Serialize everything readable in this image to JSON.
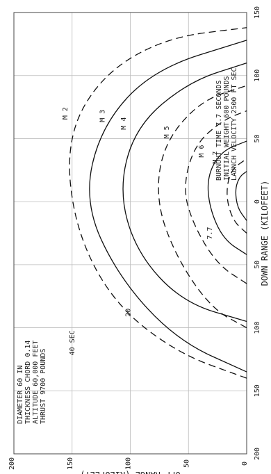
{
  "chart_data": {
    "type": "line",
    "title": "",
    "xlabel": "DOWN RANGE (KILOFEET)",
    "ylabel": "OFF RANGE (KILOFEET)",
    "xlim": [
      -200,
      150
    ],
    "ylim": [
      0,
      200
    ],
    "grid": true,
    "x_ticks": [
      "200",
      "150",
      "100",
      "50",
      "0",
      "50",
      "100",
      "150"
    ],
    "x_tick_values": [
      -200,
      -150,
      -100,
      -50,
      0,
      50,
      100,
      150
    ],
    "y_ticks": [
      "0",
      "50",
      "100",
      "150",
      "200"
    ],
    "y_tick_values": [
      0,
      50,
      100,
      150,
      200
    ],
    "notes_left": [
      "DIAMETER 60 IN",
      "THICKNESS CHORD 0.14",
      "ALTITUDE 60,000 FEET",
      "THRUST 9700 POUNDS"
    ],
    "notes_right": [
      "BURNOUT TIME 7.7 SECONDS",
      "INITIAL WEIGHT 600 POUNDS",
      "LAUNCH VELOCITY 2500 FT SEC"
    ],
    "mach_labels": [
      {
        "text": "M 2",
        "x": 70,
        "y": 154
      },
      {
        "text": "M 3",
        "x": 68,
        "y": 122
      },
      {
        "text": "M 4",
        "x": 62,
        "y": 104
      },
      {
        "text": "M 5",
        "x": 55,
        "y": 67
      },
      {
        "text": "M 6",
        "x": 40,
        "y": 37
      },
      {
        "text": "M 7",
        "x": 35,
        "y": 25
      }
    ],
    "time_labels": [
      {
        "text": "40 SEC",
        "x": -112,
        "y": 148
      },
      {
        "text": "20",
        "x": -88,
        "y": 100
      },
      {
        "text": "7.7",
        "x": -25,
        "y": 30
      }
    ],
    "series": [
      {
        "style": "dashed",
        "points": [
          [
            -140,
            0
          ],
          [
            -120,
            60
          ],
          [
            -80,
            115
          ],
          [
            -20,
            148
          ],
          [
            50,
            155
          ],
          [
            100,
            125
          ],
          [
            130,
            70
          ],
          [
            138,
            0
          ]
        ]
      },
      {
        "style": "solid",
        "points": [
          [
            -135,
            0
          ],
          [
            -110,
            60
          ],
          [
            -60,
            110
          ],
          [
            0,
            140
          ],
          [
            60,
            125
          ],
          [
            105,
            80
          ],
          [
            128,
            0
          ]
        ]
      },
      {
        "style": "solid",
        "points": [
          [
            -95,
            0
          ],
          [
            -80,
            55
          ],
          [
            -40,
            95
          ],
          [
            10,
            110
          ],
          [
            60,
            95
          ],
          [
            95,
            50
          ],
          [
            110,
            0
          ]
        ]
      },
      {
        "style": "dashed",
        "points": [
          [
            -100,
            0
          ],
          [
            -85,
            30
          ],
          [
            -45,
            60
          ],
          [
            0,
            78
          ],
          [
            45,
            72
          ],
          [
            80,
            40
          ],
          [
            92,
            0
          ]
        ]
      },
      {
        "style": "dashed",
        "points": [
          [
            -65,
            0
          ],
          [
            -50,
            25
          ],
          [
            -20,
            45
          ],
          [
            10,
            55
          ],
          [
            45,
            45
          ],
          [
            65,
            20
          ],
          [
            72,
            0
          ]
        ]
      },
      {
        "style": "solid",
        "points": [
          [
            -42,
            0
          ],
          [
            -30,
            20
          ],
          [
            -5,
            32
          ],
          [
            20,
            34
          ],
          [
            40,
            22
          ],
          [
            48,
            0
          ]
        ]
      },
      {
        "style": "dashed",
        "points": [
          [
            -25,
            0
          ],
          [
            -15,
            12
          ],
          [
            5,
            18
          ],
          [
            25,
            14
          ],
          [
            34,
            0
          ]
        ]
      },
      {
        "style": "solid",
        "points": [
          [
            -15,
            0
          ],
          [
            -5,
            8
          ],
          [
            10,
            10
          ],
          [
            20,
            6
          ],
          [
            24,
            0
          ]
        ]
      }
    ]
  }
}
